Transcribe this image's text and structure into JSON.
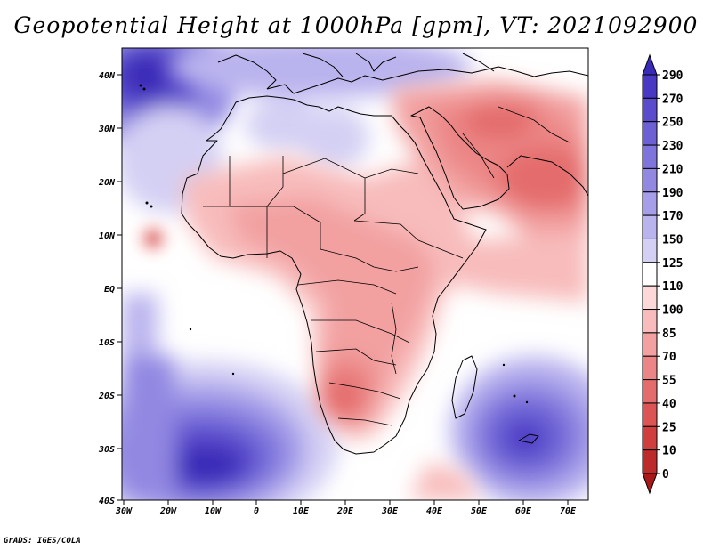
{
  "title": "Geopotential Height at 1000hPa [gpm], VT: 2021092900",
  "credit": "GrADS: IGES/COLA",
  "map": {
    "variable": "Geopotential Height",
    "level": "1000hPa",
    "units": "gpm",
    "valid_time": "2021092900",
    "lon_range": [
      -30,
      75
    ],
    "lat_range": [
      -40,
      45
    ],
    "lat_ticks": [
      "40N",
      "30N",
      "20N",
      "10N",
      "EQ",
      "10S",
      "20S",
      "30S",
      "40S"
    ],
    "lon_ticks": [
      "30W",
      "20W",
      "10W",
      "0",
      "10E",
      "20E",
      "30E",
      "40E",
      "50E",
      "60E",
      "70E"
    ]
  },
  "colorbar": {
    "levels": [
      "290",
      "270",
      "250",
      "230",
      "210",
      "190",
      "170",
      "150",
      "125",
      "110",
      "100",
      "85",
      "70",
      "55",
      "40",
      "25",
      "10",
      "0"
    ],
    "colors": [
      "#3a2ab8",
      "#4838c4",
      "#5a4ccc",
      "#6c60d4",
      "#7e74dc",
      "#9288e2",
      "#a69ee8",
      "#bab4ee",
      "#d4d0f4",
      "#ffffff",
      "#fcd8d8",
      "#f8bcbc",
      "#f2a0a0",
      "#ec8686",
      "#e46c6c",
      "#dc5454",
      "#d03e3e",
      "#bc2a2a",
      "#a81818"
    ]
  }
}
